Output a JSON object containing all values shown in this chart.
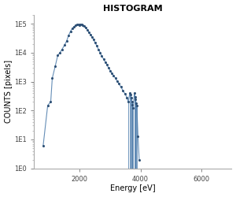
{
  "title": "HISTOGRAM",
  "xlabel": "Energy [eV]",
  "ylabel": "COUNTS [pixels]",
  "line_color": "#4a7aaa",
  "marker_color": "#2e5075",
  "background_color": "#ffffff",
  "xlim": [
    500,
    7000
  ],
  "ylim": [
    1.0,
    200000.0
  ],
  "yticks": [
    1.0,
    10.0,
    100.0,
    1000.0,
    10000.0,
    100000.0
  ],
  "ytick_labels": [
    "1E0",
    "1E1",
    "1E2",
    "1E3",
    "1E4",
    "1E5"
  ],
  "xticks": [
    2000,
    4000,
    6000
  ],
  "data_x": [
    800,
    950,
    1050,
    1100,
    1200,
    1280,
    1350,
    1420,
    1500,
    1570,
    1640,
    1700,
    1760,
    1820,
    1870,
    1920,
    1960,
    1990,
    2020,
    2060,
    2100,
    2150,
    2200,
    2260,
    2310,
    2360,
    2410,
    2460,
    2510,
    2570,
    2620,
    2680,
    2730,
    2790,
    2840,
    2900,
    2950,
    3010,
    3060,
    3120,
    3180,
    3230,
    3290,
    3360,
    3420,
    3490,
    3560,
    3600,
    3650,
    3680,
    3700,
    3720,
    3740,
    3760,
    3800,
    3820,
    3840,
    3860,
    3880,
    3920,
    3960
  ],
  "data_y": [
    6,
    150,
    200,
    1300,
    3500,
    8000,
    10000,
    13000,
    18000,
    25000,
    40000,
    55000,
    70000,
    80000,
    90000,
    95000,
    92000,
    88000,
    93000,
    97000,
    88000,
    82000,
    75000,
    60000,
    50000,
    42000,
    35000,
    28000,
    22000,
    17000,
    13000,
    10000,
    7500,
    6000,
    4800,
    3800,
    3000,
    2400,
    2000,
    1600,
    1300,
    1050,
    850,
    650,
    500,
    380,
    280,
    200,
    400,
    350,
    280,
    200,
    160,
    120,
    400,
    300,
    240,
    180,
    150,
    13,
    2
  ],
  "drop_x": [
    3600,
    3650,
    3680,
    3700,
    3720,
    3740,
    3760,
    3800,
    3820,
    3840,
    3860,
    3880
  ],
  "baseline": 1.0,
  "marker_size": 5,
  "linewidth": 0.8
}
